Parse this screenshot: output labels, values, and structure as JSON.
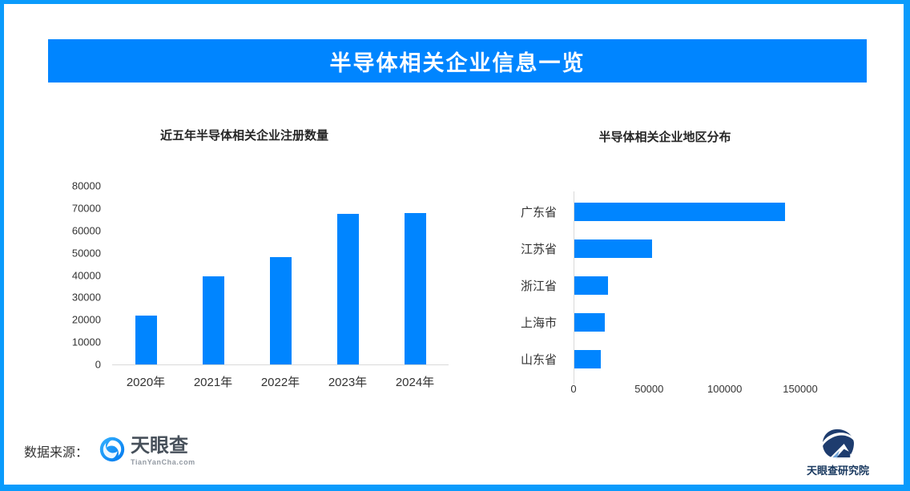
{
  "banner": {
    "title": "半导体相关企业信息一览"
  },
  "colors": {
    "accent_blue": "#0085ff",
    "frame_border_blue": "#0a9bfc",
    "axis_line_gray": "#d9d9d9",
    "institute_navy": "#17375e"
  },
  "chart_data": [
    {
      "type": "bar",
      "orientation": "vertical",
      "title": "近五年半导体相关企业注册数量",
      "categories": [
        "2020年",
        "2021年",
        "2022年",
        "2023年",
        "2024年"
      ],
      "values": [
        22000,
        39500,
        48000,
        67500,
        67800
      ],
      "ylabel": "",
      "xlabel": "",
      "ylim": [
        0,
        80000
      ],
      "ytick_step": 10000,
      "grid": false,
      "bar_color": "#0085ff"
    },
    {
      "type": "bar",
      "orientation": "horizontal",
      "title": "半导体相关企业地区分布",
      "categories": [
        "广东省",
        "江苏省",
        "浙江省",
        "上海市",
        "山东省"
      ],
      "values": [
        140000,
        52000,
        23000,
        20500,
        18000
      ],
      "xlim": [
        0,
        150000
      ],
      "xticks": [
        0,
        50000,
        100000,
        150000
      ],
      "grid": false,
      "bar_color": "#0085ff"
    }
  ],
  "footer": {
    "source_label": "数据来源：",
    "tianyancha_name": "天眼查",
    "tianyancha_sub": "TianYanCha.com",
    "institute_label": "天眼查研究院"
  }
}
